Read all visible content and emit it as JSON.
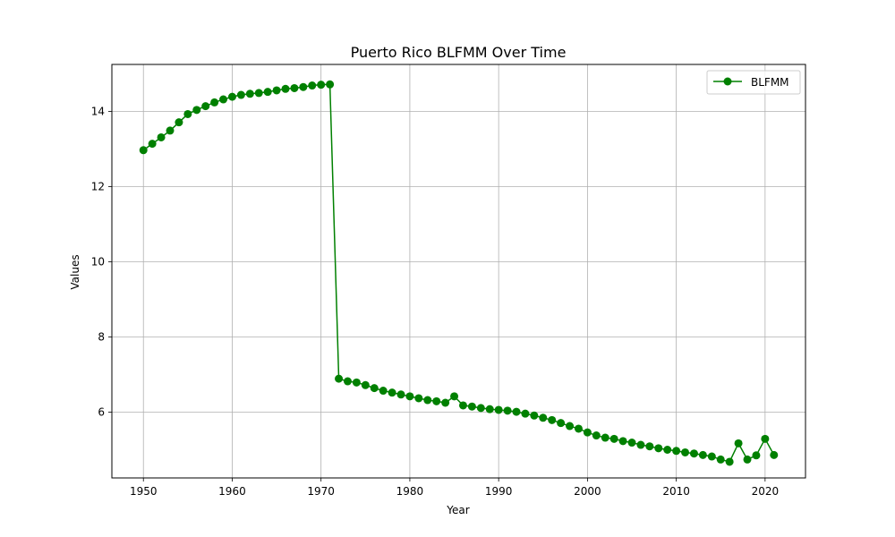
{
  "chart_data": {
    "type": "line",
    "title": "Puerto Rico BLFMM Over Time",
    "xlabel": "Year",
    "ylabel": "Values",
    "xlim": [
      1946.45,
      2024.55
    ],
    "ylim": [
      4.25,
      15.25
    ],
    "xticks": [
      1950,
      1960,
      1970,
      1980,
      1990,
      2000,
      2010,
      2020
    ],
    "yticks": [
      6,
      8,
      10,
      12,
      14
    ],
    "grid": true,
    "legend": {
      "position": "top-right"
    },
    "series": [
      {
        "name": "BLFMM",
        "color": "#008000",
        "marker": "circle",
        "x": [
          1950,
          1951,
          1952,
          1953,
          1954,
          1955,
          1956,
          1957,
          1958,
          1959,
          1960,
          1961,
          1962,
          1963,
          1964,
          1965,
          1966,
          1967,
          1968,
          1969,
          1970,
          1971,
          1972,
          1973,
          1974,
          1975,
          1976,
          1977,
          1978,
          1979,
          1980,
          1981,
          1982,
          1983,
          1984,
          1985,
          1986,
          1987,
          1988,
          1989,
          1990,
          1991,
          1992,
          1993,
          1994,
          1995,
          1996,
          1997,
          1998,
          1999,
          2000,
          2001,
          2002,
          2003,
          2004,
          2005,
          2006,
          2007,
          2008,
          2009,
          2010,
          2011,
          2012,
          2013,
          2014,
          2015,
          2016,
          2017,
          2018,
          2019,
          2020,
          2021
        ],
        "values": [
          12.97,
          13.14,
          13.31,
          13.49,
          13.71,
          13.93,
          14.04,
          14.14,
          14.24,
          14.32,
          14.39,
          14.44,
          14.47,
          14.49,
          14.52,
          14.56,
          14.6,
          14.62,
          14.65,
          14.69,
          14.71,
          14.72,
          6.89,
          6.82,
          6.79,
          6.72,
          6.64,
          6.57,
          6.52,
          6.47,
          6.42,
          6.37,
          6.32,
          6.29,
          6.25,
          6.42,
          6.18,
          6.15,
          6.11,
          6.08,
          6.06,
          6.04,
          6.01,
          5.96,
          5.91,
          5.85,
          5.79,
          5.71,
          5.63,
          5.56,
          5.46,
          5.38,
          5.32,
          5.29,
          5.23,
          5.19,
          5.13,
          5.09,
          5.04,
          5.0,
          4.97,
          4.93,
          4.9,
          4.86,
          4.82,
          4.74,
          4.68,
          5.17,
          4.74,
          4.85,
          5.29,
          4.86
        ]
      }
    ]
  }
}
